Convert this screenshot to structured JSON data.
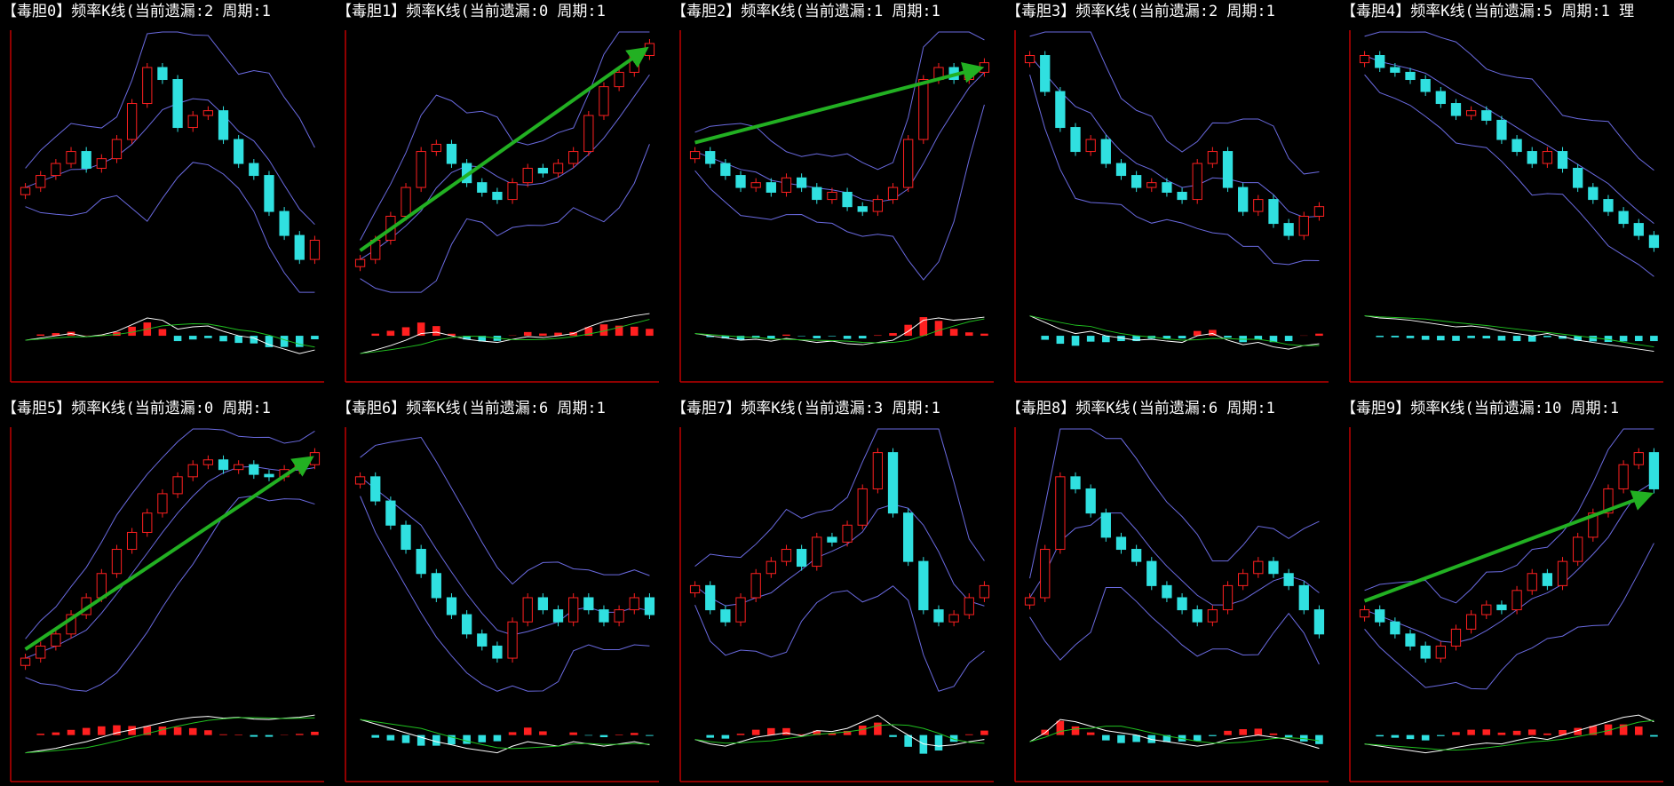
{
  "panels": [
    {
      "title": "【毒胆0】频率K线(当前遗漏:2 周期:1",
      "arrow": false,
      "prices": [
        40,
        45,
        50,
        55,
        48,
        52,
        60,
        75,
        90,
        85,
        65,
        70,
        72,
        60,
        50,
        45,
        30,
        20,
        10,
        18
      ]
    },
    {
      "title": "【毒胆1】频率K线(当前遗漏:0 周期:1",
      "arrow": true,
      "prices": [
        10,
        18,
        28,
        40,
        55,
        58,
        50,
        42,
        38,
        35,
        42,
        48,
        46,
        50,
        55,
        70,
        82,
        88,
        95,
        100
      ]
    },
    {
      "title": "【毒胆2】频率K线(当前遗漏:1 周期:1",
      "arrow": true,
      "prices": [
        55,
        50,
        45,
        40,
        42,
        38,
        44,
        40,
        35,
        38,
        32,
        30,
        35,
        40,
        60,
        85,
        90,
        85,
        88,
        92
      ]
    },
    {
      "title": "【毒胆3】频率K线(当前遗漏:2 周期:1",
      "arrow": false,
      "prices": [
        95,
        80,
        65,
        55,
        60,
        50,
        45,
        40,
        42,
        38,
        35,
        50,
        55,
        40,
        30,
        35,
        25,
        20,
        28,
        32
      ]
    },
    {
      "title": "【毒胆4】频率K线(当前遗漏:5 周期:1 理",
      "arrow": false,
      "prices": [
        95,
        90,
        88,
        85,
        80,
        75,
        70,
        72,
        68,
        60,
        55,
        50,
        55,
        48,
        40,
        35,
        30,
        25,
        20,
        15
      ]
    },
    {
      "title": "【毒胆5】频率K线(当前遗漏:0 周期:1",
      "arrow": true,
      "prices": [
        10,
        15,
        20,
        28,
        35,
        45,
        55,
        62,
        70,
        78,
        85,
        90,
        92,
        88,
        90,
        86,
        85,
        88,
        90,
        95
      ]
    },
    {
      "title": "【毒胆6】频率K线(当前遗漏:6 周期:1",
      "arrow": false,
      "prices": [
        85,
        75,
        65,
        55,
        45,
        35,
        28,
        20,
        15,
        10,
        25,
        35,
        30,
        25,
        35,
        30,
        25,
        30,
        35,
        28
      ]
    },
    {
      "title": "【毒胆7】频率K线(当前遗漏:3 周期:1",
      "arrow": false,
      "prices": [
        40,
        30,
        25,
        35,
        45,
        50,
        55,
        48,
        60,
        58,
        65,
        80,
        95,
        70,
        50,
        30,
        25,
        28,
        35,
        40
      ]
    },
    {
      "title": "【毒胆8】频率K线(当前遗漏:6 周期:1",
      "arrow": false,
      "prices": [
        35,
        55,
        85,
        80,
        70,
        60,
        55,
        50,
        40,
        35,
        30,
        25,
        30,
        40,
        45,
        50,
        45,
        40,
        30,
        20
      ]
    },
    {
      "title": "【毒胆9】频率K线(当前遗漏:10 周期:1",
      "arrow": true,
      "prices": [
        30,
        25,
        20,
        15,
        10,
        15,
        22,
        28,
        32,
        30,
        38,
        45,
        40,
        50,
        60,
        70,
        80,
        90,
        95,
        80
      ]
    }
  ]
}
